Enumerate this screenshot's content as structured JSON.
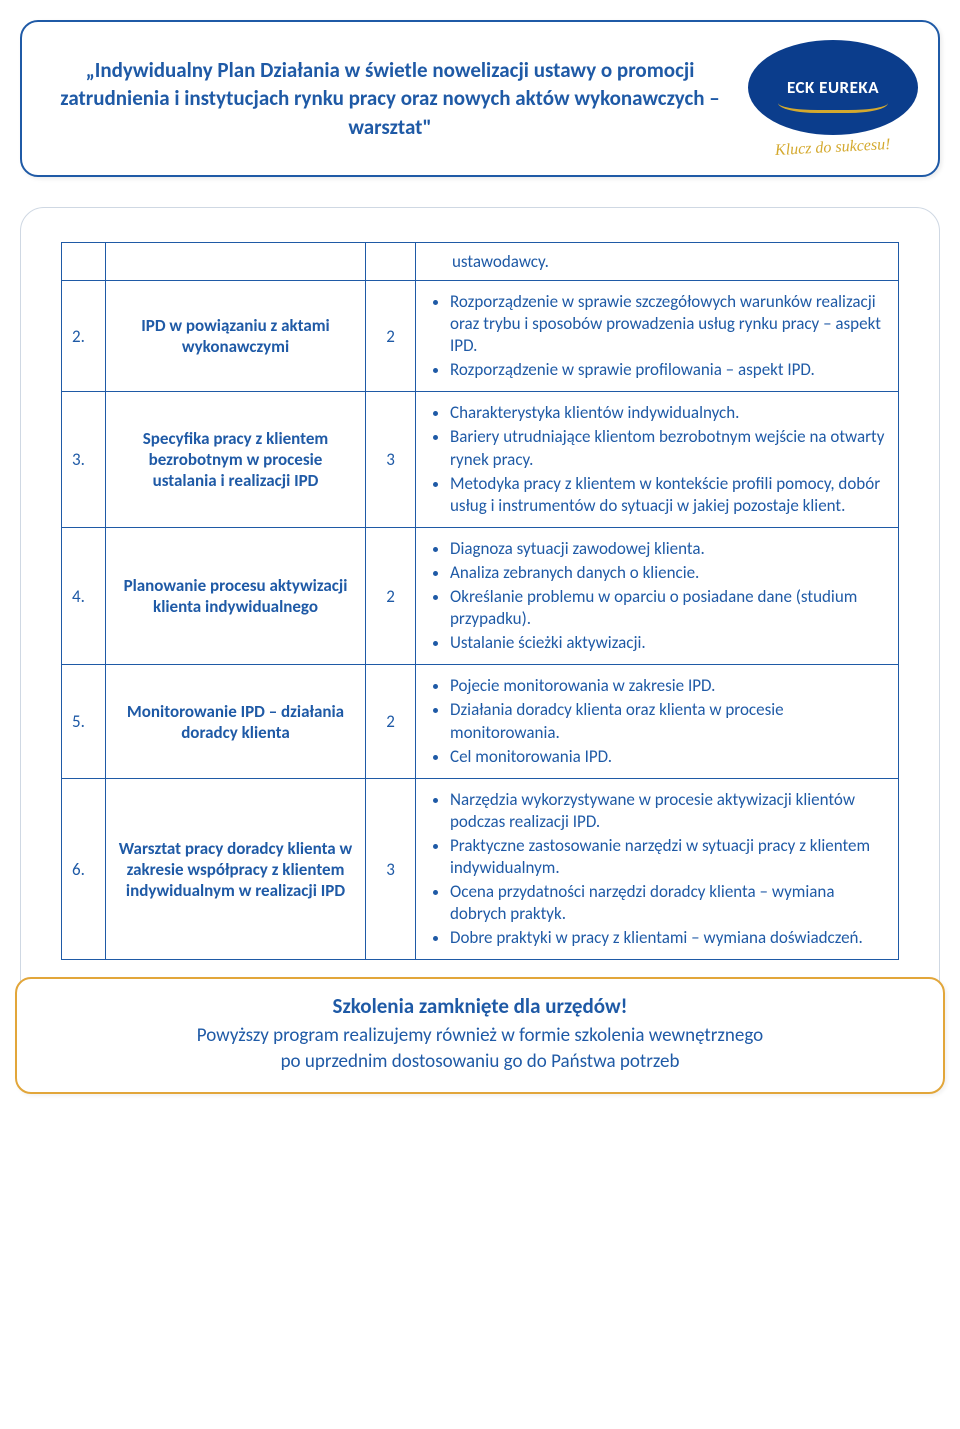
{
  "colors": {
    "primary_blue": "#1f5aa6",
    "logo_blue": "#0b3d8c",
    "accent_gold": "#d4a92e",
    "footer_border": "#e2a63a",
    "panel_border": "#cfd8e3",
    "white": "#ffffff"
  },
  "typography": {
    "title_fontsize_pt": 16,
    "body_fontsize_pt": 13,
    "font_family": "Calibri"
  },
  "header": {
    "title": "„Indywidualny Plan Działania w świetle nowelizacji ustawy o promocji zatrudnienia i instytucjach rynku pracy oraz nowych aktów wykonawczych – warsztat\"",
    "logo_text": "ECK EUREKA",
    "logo_tagline": "Klucz do sukcesu!"
  },
  "table": {
    "top_remainder": "ustawodawcy.",
    "rows": [
      {
        "num": "2.",
        "topic": "IPD w powiązaniu z aktami wykonawczymi",
        "hours": "2",
        "bullets": [
          "Rozporządzenie w sprawie szczegółowych warunków realizacji oraz trybu i sposobów prowadzenia usług rynku pracy – aspekt IPD.",
          "Rozporządzenie w sprawie profilowania – aspekt IPD."
        ]
      },
      {
        "num": "3.",
        "topic": "Specyfika pracy z klientem bezrobotnym w procesie ustalania i realizacji IPD",
        "hours": "3",
        "bullets": [
          "Charakterystyka klientów indywidualnych.",
          "Bariery utrudniające klientom bezrobotnym wejście na otwarty rynek pracy.",
          "Metodyka pracy z klientem w kontekście profili pomocy, dobór usług i instrumentów do sytuacji w jakiej pozostaje klient."
        ]
      },
      {
        "num": "4.",
        "topic": "Planowanie procesu aktywizacji klienta indywidualnego",
        "hours": "2",
        "bullets": [
          "Diagnoza sytuacji zawodowej klienta.",
          "Analiza zebranych danych o kliencie.",
          "Określanie problemu w oparciu o posiadane dane (studium przypadku).",
          "Ustalanie ścieżki aktywizacji."
        ]
      },
      {
        "num": "5.",
        "topic": "Monitorowanie IPD – działania doradcy klienta",
        "hours": "2",
        "bullets": [
          "Pojecie monitorowania w zakresie IPD.",
          "Działania doradcy klienta oraz klienta w procesie monitorowania.",
          "Cel monitorowania IPD."
        ]
      },
      {
        "num": "6.",
        "topic": "Warsztat pracy doradcy klienta w zakresie współpracy z klientem indywidualnym w realizacji IPD",
        "hours": "3",
        "bullets": [
          "Narzędzia wykorzystywane w procesie aktywizacji klientów podczas realizacji IPD.",
          "Praktyczne zastosowanie narzędzi w sytuacji pracy z klientem indywidualnym.",
          "Ocena przydatności narzędzi doradcy klienta – wymiana dobrych praktyk.",
          "Dobre praktyki w pracy z klientami – wymiana doświadczeń."
        ]
      }
    ]
  },
  "footer": {
    "title": "Szkolenia zamknięte dla urzędów!",
    "line1": "Powyższy program realizujemy również w formie szkolenia wewnętrznego",
    "line2": "po uprzednim dostosowaniu go do Państwa potrzeb"
  }
}
